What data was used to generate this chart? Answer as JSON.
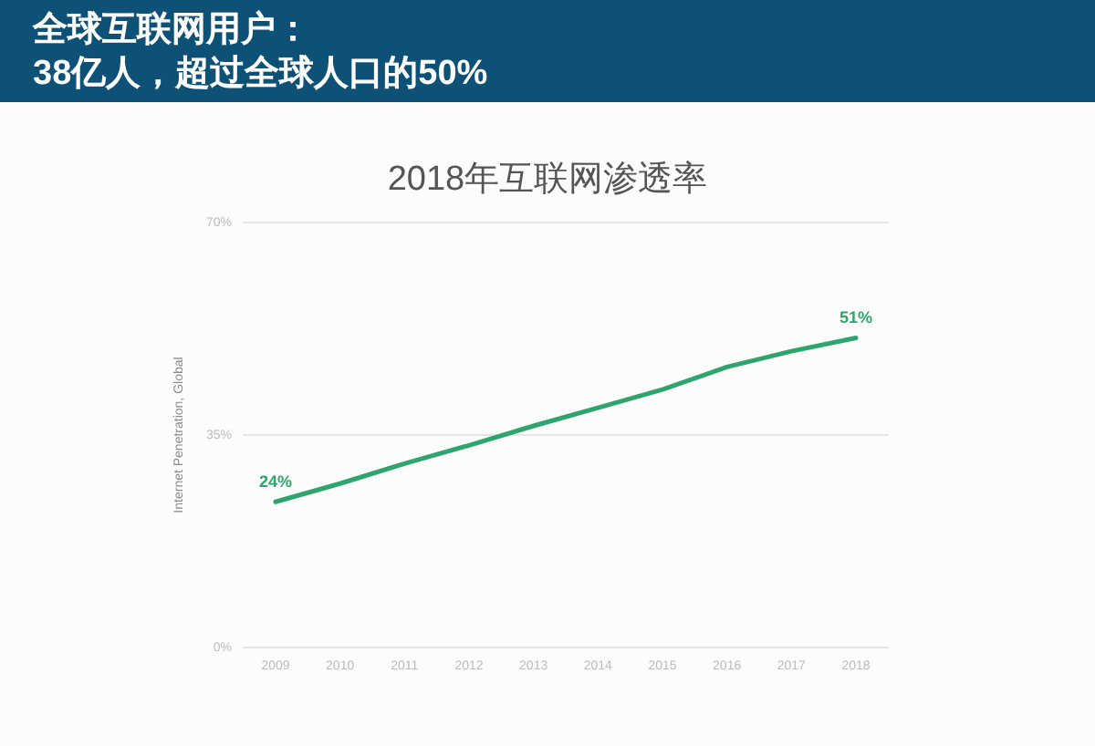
{
  "chart_data": {
    "type": "line",
    "title": "全球互联网用户：\n38亿人，超过全球人口的50%",
    "subtitle": "2018年互联网渗透率",
    "ylabel": "Internet Penetration, Global",
    "categories": [
      "2009",
      "2010",
      "2011",
      "2012",
      "2013",
      "2014",
      "2015",
      "2016",
      "2017",
      "2018"
    ],
    "series": [
      {
        "color": "#2ea56c",
        "values": [
          24,
          27,
          30.3,
          33.3,
          36.5,
          39.5,
          42.5,
          46.2,
          48.8,
          51
        ],
        "value_labels": [
          "24%",
          null,
          null,
          null,
          null,
          null,
          null,
          null,
          null,
          "51%"
        ]
      }
    ],
    "ylim": [
      0,
      70
    ],
    "yticks": [
      {
        "value": 0,
        "label": "0%"
      },
      {
        "value": 35,
        "label": "35%"
      },
      {
        "value": 70,
        "label": "70%"
      }
    ],
    "grid": "y",
    "marker": "none",
    "line_style": "solid"
  }
}
